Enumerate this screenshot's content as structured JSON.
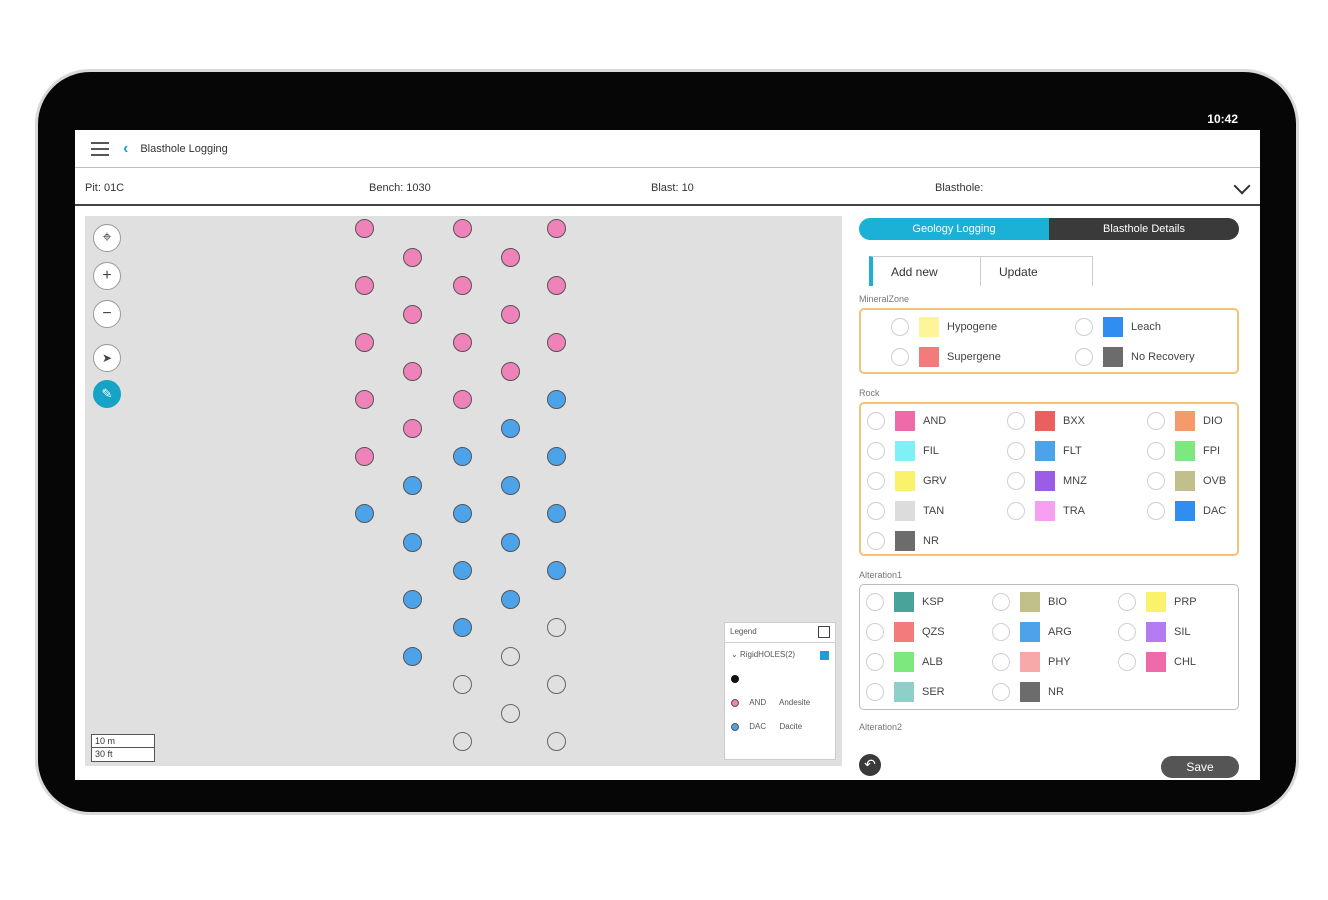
{
  "status": {
    "time": "10:42"
  },
  "appbar": {
    "back": "‹",
    "title": "Blasthole Logging"
  },
  "info": {
    "pit": "Pit: 01C",
    "bench": "Bench: 1030",
    "blast": "Blast: 10",
    "blasthole": "Blasthole:"
  },
  "map": {
    "tools": [
      "⌖",
      "+",
      "−",
      "➤",
      "✎"
    ],
    "scale": [
      "10 m",
      "30 ft"
    ],
    "holes": [
      {
        "row": 0,
        "col": 0,
        "type": "AND"
      },
      {
        "row": 0,
        "col": 2,
        "type": "AND"
      },
      {
        "row": 0,
        "col": 4,
        "type": "AND"
      },
      {
        "row": 1,
        "col": 1,
        "type": "AND"
      },
      {
        "row": 1,
        "col": 3,
        "type": "AND"
      },
      {
        "row": 2,
        "col": 0,
        "type": "AND"
      },
      {
        "row": 2,
        "col": 2,
        "type": "AND"
      },
      {
        "row": 2,
        "col": 4,
        "type": "AND"
      },
      {
        "row": 3,
        "col": 1,
        "type": "AND"
      },
      {
        "row": 3,
        "col": 3,
        "type": "AND"
      },
      {
        "row": 4,
        "col": 0,
        "type": "AND"
      },
      {
        "row": 4,
        "col": 2,
        "type": "AND"
      },
      {
        "row": 4,
        "col": 4,
        "type": "AND"
      },
      {
        "row": 5,
        "col": 1,
        "type": "AND"
      },
      {
        "row": 5,
        "col": 3,
        "type": "AND"
      },
      {
        "row": 6,
        "col": 0,
        "type": "AND"
      },
      {
        "row": 6,
        "col": 2,
        "type": "AND"
      },
      {
        "row": 6,
        "col": 4,
        "type": "DAC"
      },
      {
        "row": 7,
        "col": 1,
        "type": "AND"
      },
      {
        "row": 7,
        "col": 3,
        "type": "DAC"
      },
      {
        "row": 8,
        "col": 0,
        "type": "AND"
      },
      {
        "row": 8,
        "col": 2,
        "type": "DAC"
      },
      {
        "row": 8,
        "col": 4,
        "type": "DAC"
      },
      {
        "row": 9,
        "col": 1,
        "type": "DAC"
      },
      {
        "row": 9,
        "col": 3,
        "type": "DAC"
      },
      {
        "row": 10,
        "col": 0,
        "type": "DAC"
      },
      {
        "row": 10,
        "col": 2,
        "type": "DAC"
      },
      {
        "row": 10,
        "col": 4,
        "type": "DAC"
      },
      {
        "row": 11,
        "col": 1,
        "type": "DAC"
      },
      {
        "row": 11,
        "col": 3,
        "type": "DAC"
      },
      {
        "row": 12,
        "col": 2,
        "type": "DAC"
      },
      {
        "row": 12,
        "col": 4,
        "type": "DAC"
      },
      {
        "row": 13,
        "col": 1,
        "type": "DAC"
      },
      {
        "row": 13,
        "col": 3,
        "type": "DAC"
      },
      {
        "row": 14,
        "col": 2,
        "type": "DAC"
      },
      {
        "row": 14,
        "col": 4,
        "type": "none"
      },
      {
        "row": 15,
        "col": 1,
        "type": "DAC"
      },
      {
        "row": 15,
        "col": 3,
        "type": "none"
      },
      {
        "row": 16,
        "col": 2,
        "type": "none"
      },
      {
        "row": 16,
        "col": 4,
        "type": "none"
      },
      {
        "row": 17,
        "col": 3,
        "type": "none"
      },
      {
        "row": 18,
        "col": 2,
        "type": "none"
      },
      {
        "row": 18,
        "col": 4,
        "type": "none"
      }
    ],
    "legend": {
      "title": "Legend",
      "group": "RigidHOLES(2)",
      "items": [
        {
          "code": "",
          "name": "",
          "color": "#111111"
        },
        {
          "code": "AND",
          "name": "Andesite",
          "color": "#ee82b9"
        },
        {
          "code": "DAC",
          "name": "Dacite",
          "color": "#4da3ea"
        }
      ]
    }
  },
  "panel": {
    "tabs_top": [
      "Geology Logging",
      "Blasthole Details"
    ],
    "tabs": [
      "Add new",
      "Update"
    ],
    "mineral_label": "MineralZone",
    "mineral": [
      {
        "label": "Hypogene",
        "color": "#fdf59a"
      },
      {
        "label": "Leach",
        "color": "#2f8ef0"
      },
      {
        "label": "Supergene",
        "color": "#f37b7b"
      },
      {
        "label": "No Recovery",
        "color": "#6c6c6c"
      }
    ],
    "rock_label": "Rock",
    "rock": [
      {
        "label": "AND",
        "color": "#ee6aa8"
      },
      {
        "label": "BXX",
        "color": "#ec5f5f"
      },
      {
        "label": "DIO",
        "color": "#f59a6a"
      },
      {
        "label": "FIL",
        "color": "#7ff1f6"
      },
      {
        "label": "FLT",
        "color": "#4da3ea"
      },
      {
        "label": "FPI",
        "color": "#7ce87e"
      },
      {
        "label": "GRV",
        "color": "#faf26a"
      },
      {
        "label": "MNZ",
        "color": "#9b5de5"
      },
      {
        "label": "OVB",
        "color": "#c2c08a"
      },
      {
        "label": "TAN",
        "color": "#dcdcdc"
      },
      {
        "label": "TRA",
        "color": "#f7a0f0"
      },
      {
        "label": "DAC",
        "color": "#2f8ef0"
      },
      {
        "label": "NR",
        "color": "#6c6c6c"
      }
    ],
    "alt1_label": "Alteration1",
    "alt1": [
      {
        "label": "KSP",
        "color": "#4aa39a"
      },
      {
        "label": "BIO",
        "color": "#c2c08a"
      },
      {
        "label": "PRP",
        "color": "#faf26a"
      },
      {
        "label": "QZS",
        "color": "#f37b7b"
      },
      {
        "label": "ARG",
        "color": "#4da3ea"
      },
      {
        "label": "SIL",
        "color": "#b47cf0"
      },
      {
        "label": "ALB",
        "color": "#7ce87e"
      },
      {
        "label": "PHY",
        "color": "#f8a8a8"
      },
      {
        "label": "CHL",
        "color": "#ee6aa8"
      },
      {
        "label": "SER",
        "color": "#8ecfc9"
      },
      {
        "label": "NR",
        "color": "#6c6c6c"
      }
    ],
    "alt2_label": "Alteration2",
    "undo": "↶",
    "save": "Save"
  }
}
